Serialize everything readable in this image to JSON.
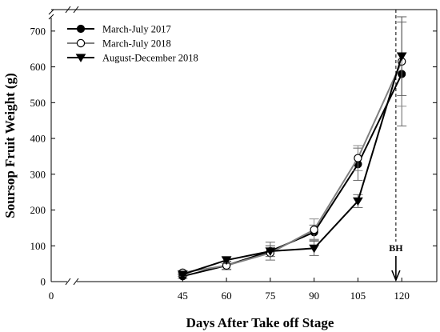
{
  "chart_data": {
    "type": "line",
    "xlabel": "Days After Take off Stage",
    "ylabel": "Soursop Fruit Weight (g)",
    "xlim": [
      0,
      132
    ],
    "ylim": [
      0,
      760
    ],
    "x_ticks": [
      0,
      45,
      60,
      75,
      90,
      105,
      120
    ],
    "y_ticks": [
      0,
      100,
      200,
      300,
      400,
      500,
      600,
      700
    ],
    "axis_breaks": true,
    "legend_position": "top-left",
    "series": [
      {
        "name": "March-July 2017",
        "marker": "filled-circle",
        "line_color": "#000000",
        "x": [
          45,
          60,
          75,
          90,
          105,
          120
        ],
        "values": [
          15,
          45,
          85,
          138,
          328,
          580
        ],
        "error": [
          6,
          10,
          25,
          20,
          45,
          145
        ]
      },
      {
        "name": "March-July 2018",
        "marker": "open-circle",
        "line_color": "#808080",
        "x": [
          45,
          60,
          75,
          90,
          105,
          120
        ],
        "values": [
          25,
          45,
          80,
          145,
          345,
          615
        ],
        "error": [
          6,
          12,
          20,
          30,
          35,
          125
        ]
      },
      {
        "name": "August-December 2018",
        "marker": "filled-triangle-down",
        "line_color": "#000000",
        "x": [
          45,
          60,
          75,
          90,
          105,
          120
        ],
        "values": [
          20,
          60,
          85,
          93,
          225,
          630
        ],
        "error": [
          5,
          10,
          15,
          20,
          18,
          110
        ]
      }
    ],
    "annotations": [
      {
        "text": "BH",
        "x": 118,
        "type": "vertical-dashed-line-with-arrow"
      }
    ]
  }
}
